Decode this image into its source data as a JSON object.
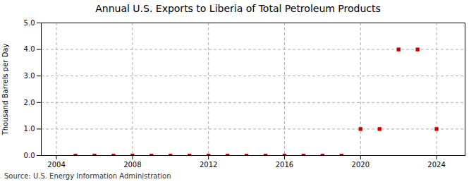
{
  "chart_data": {
    "type": "scatter",
    "title": "Annual U.S. Exports to Liberia of Total Petroleum Products",
    "ylabel": "Thousand Barrels per Day",
    "source": "Source: U.S. Energy Information Administration",
    "x": [
      2005,
      2006,
      2007,
      2008,
      2009,
      2010,
      2011,
      2012,
      2013,
      2014,
      2015,
      2016,
      2017,
      2018,
      2019,
      2020,
      2021,
      2022,
      2023,
      2024
    ],
    "values": [
      0.0,
      0.0,
      0.0,
      0.0,
      0.0,
      0.0,
      0.0,
      0.0,
      0.0,
      0.0,
      0.0,
      0.0,
      0.0,
      0.0,
      0.0,
      1.0,
      1.0,
      4.0,
      4.0,
      1.0
    ],
    "color": "#cc0000",
    "marker": "square",
    "xlim": [
      2003.2,
      2025.5
    ],
    "ylim": [
      0.0,
      5.0
    ],
    "xticks": [
      2004,
      2008,
      2012,
      2016,
      2020,
      2024
    ],
    "yticks": [
      {
        "value": 0.0,
        "label": "0.0"
      },
      {
        "value": 1.0,
        "label": "1.0"
      },
      {
        "value": 2.0,
        "label": "2.0"
      },
      {
        "value": 3.0,
        "label": "3.0"
      },
      {
        "value": 4.0,
        "label": "4.0"
      },
      {
        "value": 5.0,
        "label": "5.0"
      }
    ],
    "grid": true
  }
}
